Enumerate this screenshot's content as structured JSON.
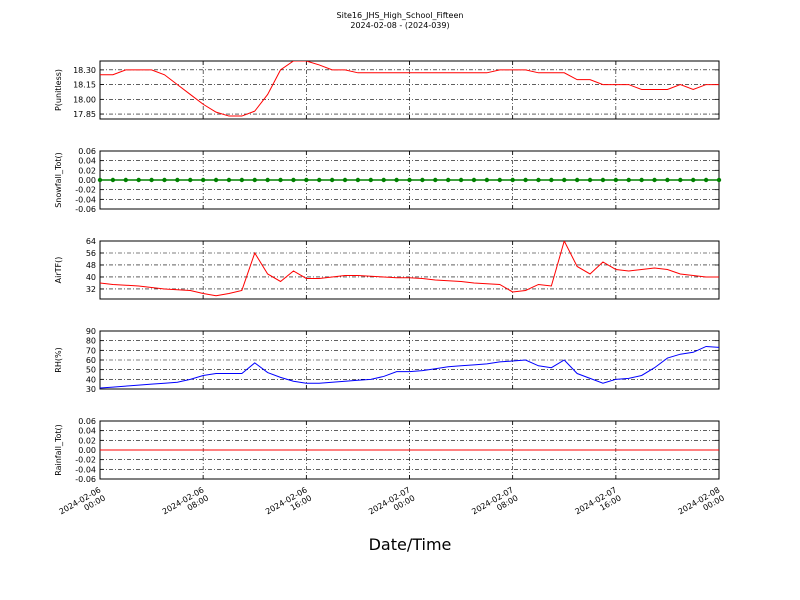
{
  "chart_data": [
    {
      "type": "line",
      "title": "Site16_JHS_High_School_Fifteen",
      "subtitle": "2024-02-08 - (2024-039)",
      "y_label": "P(unitless)",
      "x": [
        "2024-02-06 00:00",
        "2024-02-06 01:00",
        "2024-02-06 02:00",
        "2024-02-06 03:00",
        "2024-02-06 04:00",
        "2024-02-06 05:00",
        "2024-02-06 06:00",
        "2024-02-06 07:00",
        "2024-02-06 08:00",
        "2024-02-06 09:00",
        "2024-02-06 10:00",
        "2024-02-06 11:00",
        "2024-02-06 12:00",
        "2024-02-06 13:00",
        "2024-02-06 14:00",
        "2024-02-06 15:00",
        "2024-02-06 16:00",
        "2024-02-06 17:00",
        "2024-02-06 18:00",
        "2024-02-06 19:00",
        "2024-02-06 20:00",
        "2024-02-06 21:00",
        "2024-02-06 22:00",
        "2024-02-06 23:00",
        "2024-02-07 00:00",
        "2024-02-07 01:00",
        "2024-02-07 02:00",
        "2024-02-07 03:00",
        "2024-02-07 04:00",
        "2024-02-07 05:00",
        "2024-02-07 06:00",
        "2024-02-07 07:00",
        "2024-02-07 08:00",
        "2024-02-07 09:00",
        "2024-02-07 10:00",
        "2024-02-07 11:00",
        "2024-02-07 12:00",
        "2024-02-07 13:00",
        "2024-02-07 14:00",
        "2024-02-07 15:00",
        "2024-02-07 16:00",
        "2024-02-07 17:00",
        "2024-02-07 18:00",
        "2024-02-07 19:00",
        "2024-02-07 20:00",
        "2024-02-07 21:00",
        "2024-02-07 22:00",
        "2024-02-07 23:00",
        "2024-02-08 00:00"
      ],
      "values": [
        18.25,
        18.25,
        18.3,
        18.3,
        18.3,
        18.25,
        18.15,
        18.05,
        17.95,
        17.87,
        17.83,
        17.83,
        17.88,
        18.05,
        18.3,
        18.39,
        18.39,
        18.35,
        18.3,
        18.3,
        18.27,
        18.27,
        18.27,
        18.27,
        18.27,
        18.27,
        18.27,
        18.27,
        18.27,
        18.27,
        18.27,
        18.3,
        18.3,
        18.3,
        18.27,
        18.27,
        18.27,
        18.2,
        18.2,
        18.15,
        18.15,
        18.15,
        18.1,
        18.1,
        18.1,
        18.15,
        18.1,
        18.15,
        18.15
      ],
      "color": "#ff0000",
      "ylim": [
        17.8,
        18.39
      ],
      "yticks": [
        {
          "value": 17.85,
          "label": "17.85"
        },
        {
          "value": 18,
          "label": "18.00"
        },
        {
          "value": 18.15,
          "label": "18.15"
        },
        {
          "value": 18.3,
          "label": "18.30"
        }
      ],
      "xlim": [
        "2024-02-06 00:00",
        "2024-02-08 00:00"
      ],
      "xticks": [
        "2024-02-06 00:00",
        "2024-02-06 08:00",
        "2024-02-06 16:00",
        "2024-02-07 00:00",
        "2024-02-07 08:00",
        "2024-02-07 16:00",
        "2024-02-08 00:00"
      ],
      "grid": true
    },
    {
      "type": "line",
      "y_label": "Snowfall_Tot()",
      "x": [
        "2024-02-06 00:00",
        "2024-02-06 01:00",
        "2024-02-06 02:00",
        "2024-02-06 03:00",
        "2024-02-06 04:00",
        "2024-02-06 05:00",
        "2024-02-06 06:00",
        "2024-02-06 07:00",
        "2024-02-06 08:00",
        "2024-02-06 09:00",
        "2024-02-06 10:00",
        "2024-02-06 11:00",
        "2024-02-06 12:00",
        "2024-02-06 13:00",
        "2024-02-06 14:00",
        "2024-02-06 15:00",
        "2024-02-06 16:00",
        "2024-02-06 17:00",
        "2024-02-06 18:00",
        "2024-02-06 19:00",
        "2024-02-06 20:00",
        "2024-02-06 21:00",
        "2024-02-06 22:00",
        "2024-02-06 23:00",
        "2024-02-07 00:00",
        "2024-02-07 01:00",
        "2024-02-07 02:00",
        "2024-02-07 03:00",
        "2024-02-07 04:00",
        "2024-02-07 05:00",
        "2024-02-07 06:00",
        "2024-02-07 07:00",
        "2024-02-07 08:00",
        "2024-02-07 09:00",
        "2024-02-07 10:00",
        "2024-02-07 11:00",
        "2024-02-07 12:00",
        "2024-02-07 13:00",
        "2024-02-07 14:00",
        "2024-02-07 15:00",
        "2024-02-07 16:00",
        "2024-02-07 17:00",
        "2024-02-07 18:00",
        "2024-02-07 19:00",
        "2024-02-07 20:00",
        "2024-02-07 21:00",
        "2024-02-07 22:00",
        "2024-02-07 23:00",
        "2024-02-08 00:00"
      ],
      "values": [
        0,
        0,
        0,
        0,
        0,
        0,
        0,
        0,
        0,
        0,
        0,
        0,
        0,
        0,
        0,
        0,
        0,
        0,
        0,
        0,
        0,
        0,
        0,
        0,
        0,
        0,
        0,
        0,
        0,
        0,
        0,
        0,
        0,
        0,
        0,
        0,
        0,
        0,
        0,
        0,
        0,
        0,
        0,
        0,
        0,
        0,
        0,
        0,
        0
      ],
      "color": "#008000",
      "marker": true,
      "ylim": [
        -0.06,
        0.06
      ],
      "yticks": [
        -0.06,
        -0.04,
        -0.02,
        {
          "value": 0,
          "label": "0.00"
        },
        0.02,
        0.04,
        0.06
      ],
      "xlim": [
        "2024-02-06 00:00",
        "2024-02-08 00:00"
      ],
      "xticks": [
        "2024-02-06 00:00",
        "2024-02-06 08:00",
        "2024-02-06 16:00",
        "2024-02-07 00:00",
        "2024-02-07 08:00",
        "2024-02-07 16:00",
        "2024-02-08 00:00"
      ],
      "grid": true
    },
    {
      "type": "line",
      "y_label": "AirTF()",
      "x": [
        "2024-02-06 00:00",
        "2024-02-06 01:00",
        "2024-02-06 02:00",
        "2024-02-06 03:00",
        "2024-02-06 04:00",
        "2024-02-06 05:00",
        "2024-02-06 06:00",
        "2024-02-06 07:00",
        "2024-02-06 08:00",
        "2024-02-06 09:00",
        "2024-02-06 10:00",
        "2024-02-06 11:00",
        "2024-02-06 12:00",
        "2024-02-06 13:00",
        "2024-02-06 14:00",
        "2024-02-06 15:00",
        "2024-02-06 16:00",
        "2024-02-06 17:00",
        "2024-02-06 18:00",
        "2024-02-06 19:00",
        "2024-02-06 20:00",
        "2024-02-06 21:00",
        "2024-02-06 22:00",
        "2024-02-06 23:00",
        "2024-02-07 00:00",
        "2024-02-07 01:00",
        "2024-02-07 02:00",
        "2024-02-07 03:00",
        "2024-02-07 04:00",
        "2024-02-07 05:00",
        "2024-02-07 06:00",
        "2024-02-07 07:00",
        "2024-02-07 08:00",
        "2024-02-07 09:00",
        "2024-02-07 10:00",
        "2024-02-07 11:00",
        "2024-02-07 12:00",
        "2024-02-07 13:00",
        "2024-02-07 14:00",
        "2024-02-07 15:00",
        "2024-02-07 16:00",
        "2024-02-07 17:00",
        "2024-02-07 18:00",
        "2024-02-07 19:00",
        "2024-02-07 20:00",
        "2024-02-07 21:00",
        "2024-02-07 22:00",
        "2024-02-07 23:00",
        "2024-02-08 00:00"
      ],
      "values": [
        36,
        35,
        34.5,
        34,
        33,
        32,
        31.5,
        31,
        29,
        27.5,
        29,
        31,
        56,
        42,
        37,
        44,
        39,
        39,
        40,
        41,
        41,
        40.5,
        40,
        39.5,
        39.5,
        39,
        38,
        37.5,
        37,
        36,
        35.5,
        35,
        30,
        31,
        35,
        34,
        64,
        47,
        42,
        50,
        45,
        44,
        45,
        46,
        45,
        42,
        41,
        40,
        40
      ],
      "color": "#ff0000",
      "ylim": [
        25.3,
        64
      ],
      "yticks": [
        32,
        40,
        48,
        56,
        64
      ],
      "xlim": [
        "2024-02-06 00:00",
        "2024-02-08 00:00"
      ],
      "xticks": [
        "2024-02-06 00:00",
        "2024-02-06 08:00",
        "2024-02-06 16:00",
        "2024-02-07 00:00",
        "2024-02-07 08:00",
        "2024-02-07 16:00",
        "2024-02-08 00:00"
      ],
      "grid": true
    },
    {
      "type": "line",
      "y_label": "RH(%)",
      "x": [
        "2024-02-06 00:00",
        "2024-02-06 01:00",
        "2024-02-06 02:00",
        "2024-02-06 03:00",
        "2024-02-06 04:00",
        "2024-02-06 05:00",
        "2024-02-06 06:00",
        "2024-02-06 07:00",
        "2024-02-06 08:00",
        "2024-02-06 09:00",
        "2024-02-06 10:00",
        "2024-02-06 11:00",
        "2024-02-06 12:00",
        "2024-02-06 13:00",
        "2024-02-06 14:00",
        "2024-02-06 15:00",
        "2024-02-06 16:00",
        "2024-02-06 17:00",
        "2024-02-06 18:00",
        "2024-02-06 19:00",
        "2024-02-06 20:00",
        "2024-02-06 21:00",
        "2024-02-06 22:00",
        "2024-02-06 23:00",
        "2024-02-07 00:00",
        "2024-02-07 01:00",
        "2024-02-07 02:00",
        "2024-02-07 03:00",
        "2024-02-07 04:00",
        "2024-02-07 05:00",
        "2024-02-07 06:00",
        "2024-02-07 07:00",
        "2024-02-07 08:00",
        "2024-02-07 09:00",
        "2024-02-07 10:00",
        "2024-02-07 11:00",
        "2024-02-07 12:00",
        "2024-02-07 13:00",
        "2024-02-07 14:00",
        "2024-02-07 15:00",
        "2024-02-07 16:00",
        "2024-02-07 17:00",
        "2024-02-07 18:00",
        "2024-02-07 19:00",
        "2024-02-07 20:00",
        "2024-02-07 21:00",
        "2024-02-07 22:00",
        "2024-02-07 23:00",
        "2024-02-08 00:00"
      ],
      "values": [
        31,
        32,
        33,
        34,
        35,
        36,
        37,
        40,
        44,
        46,
        46,
        46,
        57,
        47,
        42,
        38,
        36,
        36,
        37,
        38,
        39,
        40,
        43,
        48,
        48,
        49,
        51,
        53,
        54,
        55,
        56,
        58,
        59,
        60,
        54,
        52,
        60,
        46,
        41,
        36,
        40,
        41,
        44,
        52,
        62,
        66,
        68,
        74,
        73
      ],
      "color": "#0000ff",
      "ylim": [
        30,
        90
      ],
      "yticks": [
        30,
        40,
        50,
        60,
        70,
        80,
        90
      ],
      "xlim": [
        "2024-02-06 00:00",
        "2024-02-08 00:00"
      ],
      "xticks": [
        "2024-02-06 00:00",
        "2024-02-06 08:00",
        "2024-02-06 16:00",
        "2024-02-07 00:00",
        "2024-02-07 08:00",
        "2024-02-07 16:00",
        "2024-02-08 00:00"
      ],
      "grid": true
    },
    {
      "type": "line",
      "y_label": "Rainfall_Tot()",
      "x_label": "Date/Time",
      "x": [
        "2024-02-06 00:00",
        "2024-02-06 01:00",
        "2024-02-06 02:00",
        "2024-02-06 03:00",
        "2024-02-06 04:00",
        "2024-02-06 05:00",
        "2024-02-06 06:00",
        "2024-02-06 07:00",
        "2024-02-06 08:00",
        "2024-02-06 09:00",
        "2024-02-06 10:00",
        "2024-02-06 11:00",
        "2024-02-06 12:00",
        "2024-02-06 13:00",
        "2024-02-06 14:00",
        "2024-02-06 15:00",
        "2024-02-06 16:00",
        "2024-02-06 17:00",
        "2024-02-06 18:00",
        "2024-02-06 19:00",
        "2024-02-06 20:00",
        "2024-02-06 21:00",
        "2024-02-06 22:00",
        "2024-02-06 23:00",
        "2024-02-07 00:00",
        "2024-02-07 01:00",
        "2024-02-07 02:00",
        "2024-02-07 03:00",
        "2024-02-07 04:00",
        "2024-02-07 05:00",
        "2024-02-07 06:00",
        "2024-02-07 07:00",
        "2024-02-07 08:00",
        "2024-02-07 09:00",
        "2024-02-07 10:00",
        "2024-02-07 11:00",
        "2024-02-07 12:00",
        "2024-02-07 13:00",
        "2024-02-07 14:00",
        "2024-02-07 15:00",
        "2024-02-07 16:00",
        "2024-02-07 17:00",
        "2024-02-07 18:00",
        "2024-02-07 19:00",
        "2024-02-07 20:00",
        "2024-02-07 21:00",
        "2024-02-07 22:00",
        "2024-02-07 23:00",
        "2024-02-08 00:00"
      ],
      "values": [
        0,
        0,
        0,
        0,
        0,
        0,
        0,
        0,
        0,
        0,
        0,
        0,
        0,
        0,
        0,
        0,
        0,
        0,
        0,
        0,
        0,
        0,
        0,
        0,
        0,
        0,
        0,
        0,
        0,
        0,
        0,
        0,
        0,
        0,
        0,
        0,
        0,
        0,
        0,
        0,
        0,
        0,
        0,
        0,
        0,
        0,
        0,
        0,
        0
      ],
      "color": "#ff0000",
      "ylim": [
        -0.06,
        0.06
      ],
      "yticks": [
        -0.06,
        -0.04,
        -0.02,
        {
          "value": 0,
          "label": "0.00"
        },
        0.02,
        0.04,
        0.06
      ],
      "xlim": [
        "2024-02-06 00:00",
        "2024-02-08 00:00"
      ],
      "xticks": [
        "2024-02-06 00:00",
        "2024-02-06 08:00",
        "2024-02-06 16:00",
        "2024-02-07 00:00",
        "2024-02-07 08:00",
        "2024-02-07 16:00",
        "2024-02-08 00:00"
      ],
      "grid": true
    }
  ]
}
